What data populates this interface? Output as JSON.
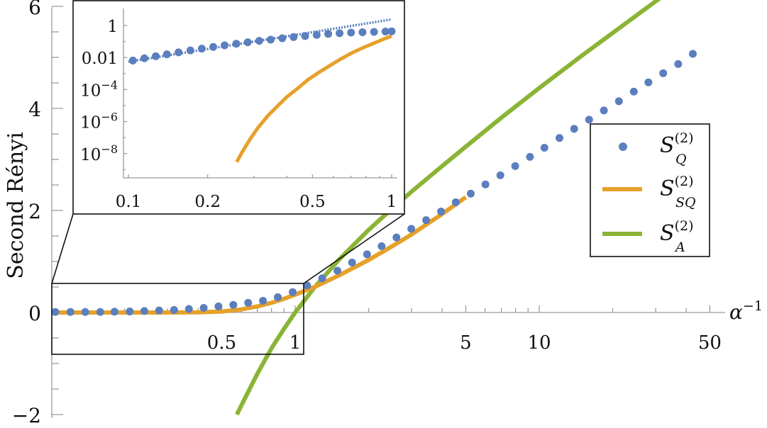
{
  "chart_data": [
    {
      "id": "main",
      "type": "line",
      "title": "",
      "xlabel": "α⁻¹",
      "ylabel": "Second Rényi",
      "xscale": "log",
      "xlim": [
        0.1,
        60
      ],
      "ylim": [
        -2,
        6
      ],
      "x_ticks": [
        0.5,
        1,
        5,
        10,
        50
      ],
      "x_tick_labels": [
        "0.5",
        "1",
        "5",
        "10",
        "50"
      ],
      "y_ticks": [
        -2,
        0,
        2,
        4,
        6
      ],
      "y_tick_labels": [
        "−2",
        "0",
        "2",
        "4",
        "6"
      ],
      "legend": {
        "position": "right",
        "entries": [
          {
            "label": "S_Q^(2)",
            "base": "S",
            "sup": "(2)",
            "sub": "Q",
            "style": "marker",
            "color": "#5B7FBE"
          },
          {
            "label": "S_SQ^(2)",
            "base": "S",
            "sup": "(2)",
            "sub": "SQ",
            "style": "line",
            "color": "#E6A12A"
          },
          {
            "label": "S_A^(2)",
            "base": "S",
            "sup": "(2)",
            "sub": "A",
            "style": "line",
            "color": "#8AB435"
          }
        ]
      },
      "series": [
        {
          "name": "S_Q^(2)",
          "style": "markers",
          "color": "#5B7FBE",
          "x": [
            0.104,
            0.12,
            0.138,
            0.159,
            0.182,
            0.21,
            0.241,
            0.277,
            0.319,
            0.367,
            0.422,
            0.485,
            0.558,
            0.642,
            0.738,
            0.849,
            0.977,
            1.12,
            1.29,
            1.49,
            1.71,
            1.97,
            2.26,
            2.6,
            2.99,
            3.44,
            3.96,
            4.55,
            5.24,
            6.02,
            6.93,
            7.97,
            9.16,
            10.5,
            12.1,
            13.9,
            16.0,
            18.4,
            21.2,
            24.4,
            28.0,
            32.2,
            37.1,
            42.6
          ],
          "y": [
            0.01,
            0.01,
            0.01,
            0.01,
            0.015,
            0.02,
            0.03,
            0.04,
            0.05,
            0.07,
            0.09,
            0.12,
            0.15,
            0.19,
            0.23,
            0.3,
            0.4,
            0.53,
            0.67,
            0.82,
            0.98,
            1.14,
            1.3,
            1.47,
            1.64,
            1.81,
            1.98,
            2.16,
            2.33,
            2.51,
            2.69,
            2.87,
            3.05,
            3.23,
            3.42,
            3.6,
            3.78,
            3.96,
            4.14,
            4.33,
            4.51,
            4.69,
            4.87,
            5.07
          ]
        },
        {
          "name": "S_SQ^(2)",
          "style": "line",
          "color": "#E6A12A",
          "x": [
            0.1,
            0.2,
            0.3,
            0.4,
            0.5,
            0.6,
            0.7,
            0.8,
            0.9,
            1.0,
            1.2,
            1.5,
            2.0,
            2.5,
            3.0,
            4.0,
            5.0
          ],
          "y": [
            0,
            0,
            0,
            0.003,
            0.02,
            0.06,
            0.12,
            0.19,
            0.27,
            0.35,
            0.5,
            0.72,
            1.03,
            1.3,
            1.53,
            1.93,
            2.26
          ]
        },
        {
          "name": "S_A^(2)",
          "style": "line",
          "color": "#8AB435",
          "x": [
            0.577,
            0.62,
            0.7,
            0.8,
            0.9,
            1.0,
            1.2,
            1.5,
            2.0,
            2.5,
            3.0,
            4.0,
            5.0,
            7.0,
            10.0,
            15.0,
            20.0,
            30.0,
            40.0,
            50.0,
            60.0
          ],
          "y": [
            -2.0,
            -1.7,
            -1.2,
            -0.7,
            -0.32,
            0.0,
            0.49,
            1.02,
            1.62,
            2.04,
            2.37,
            2.87,
            3.25,
            3.82,
            4.4,
            5.04,
            5.48,
            6.1,
            6.53,
            6.87,
            7.14
          ]
        }
      ]
    },
    {
      "id": "inset",
      "type": "line",
      "xscale": "log",
      "yscale": "log",
      "xlim": [
        0.095,
        1.05
      ],
      "ylim": [
        1e-10,
        10
      ],
      "x_ticks": [
        0.1,
        0.2,
        0.5,
        1
      ],
      "x_tick_labels": [
        "0.1",
        "0.2",
        "0.5",
        "1"
      ],
      "y_ticks": [
        1,
        0.01,
        0.0001,
        1e-06,
        1e-08
      ],
      "y_tick_labels": [
        {
          "base": "1",
          "exp": ""
        },
        {
          "base": "0.01",
          "exp": ""
        },
        {
          "base": "10",
          "exp": "−4"
        },
        {
          "base": "10",
          "exp": "−6"
        },
        {
          "base": "10",
          "exp": "−8"
        }
      ],
      "series": [
        {
          "name": "S_Q^(2)",
          "style": "markers",
          "color": "#5B7FBE",
          "x": [
            0.104,
            0.115,
            0.127,
            0.14,
            0.155,
            0.172,
            0.19,
            0.21,
            0.232,
            0.257,
            0.284,
            0.314,
            0.347,
            0.384,
            0.424,
            0.469,
            0.519,
            0.574,
            0.634,
            0.701,
            0.775,
            0.857,
            0.947,
            1.0
          ],
          "y": [
            0.0065,
            0.009,
            0.012,
            0.016,
            0.021,
            0.028,
            0.036,
            0.046,
            0.058,
            0.073,
            0.09,
            0.11,
            0.13,
            0.16,
            0.19,
            0.22,
            0.26,
            0.3,
            0.33,
            0.36,
            0.38,
            0.4,
            0.42,
            0.43
          ]
        },
        {
          "name": "S_Q^(2) asymptote",
          "style": "dotted",
          "color": "#5B7FBE",
          "x": [
            0.1,
            1.0
          ],
          "y": [
            0.0055,
            2.4
          ]
        },
        {
          "name": "S_SQ^(2)",
          "style": "line",
          "color": "#E6A12A",
          "x": [
            0.258,
            0.27,
            0.29,
            0.31,
            0.34,
            0.37,
            0.4,
            0.44,
            0.48,
            0.53,
            0.58,
            0.64,
            0.7,
            0.77,
            0.85,
            0.93,
            1.0
          ],
          "y": [
            3e-09,
            1.2e-08,
            8e-08,
            4e-07,
            2.5e-06,
            1e-05,
            3.5e-05,
            0.00012,
            0.0004,
            0.0012,
            0.003,
            0.008,
            0.018,
            0.038,
            0.075,
            0.14,
            0.22
          ]
        }
      ]
    }
  ]
}
